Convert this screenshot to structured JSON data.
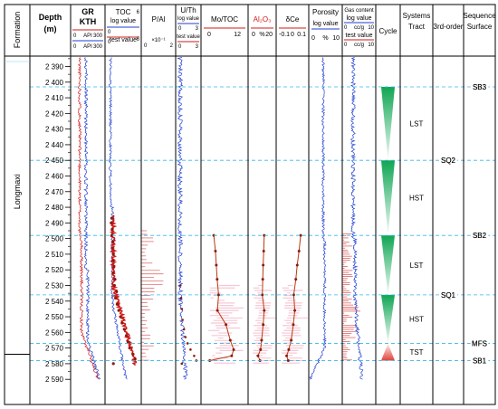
{
  "chart_data": {
    "type": "well-log",
    "depth": {
      "min": 2380,
      "max": 2590,
      "ticks": [
        2390,
        2400,
        2410,
        2420,
        2430,
        2440,
        2450,
        2460,
        2470,
        2480,
        2490,
        2500,
        2510,
        2520,
        2530,
        2540,
        2550,
        2560,
        2570,
        2580,
        2590
      ]
    },
    "formation": "Longmaxi",
    "columns": [
      {
        "key": "formation",
        "header": "Formation"
      },
      {
        "key": "depth",
        "header": "Depth",
        "sub": "(m)"
      },
      {
        "key": "gr",
        "header": "GR",
        "header2": "KTH",
        "scale1": [
          "0",
          "API",
          "300"
        ],
        "scale2": [
          "0",
          "API",
          "300"
        ]
      },
      {
        "key": "toc",
        "header": "TOC",
        "header2": "log value",
        "header3": "test value",
        "scale1": [
          "0",
          "6"
        ],
        "scale2": [
          "0",
          "6"
        ]
      },
      {
        "key": "pal",
        "header": "P/Al",
        "sub": "×10⁻¹",
        "scale1": [
          "0",
          "2"
        ]
      },
      {
        "key": "uth",
        "header": "U/Th",
        "header2": "log value",
        "header3": "test value",
        "scale1": [
          "0",
          "3"
        ],
        "scale2": [
          "0",
          "3"
        ]
      },
      {
        "key": "moc",
        "header": "Mo/TOC",
        "scale1": [
          "0",
          "12"
        ]
      },
      {
        "key": "al",
        "header": "Al₂O₃",
        "scale1": [
          "0",
          "%",
          "20"
        ]
      },
      {
        "key": "ce",
        "header": "δCe",
        "scale1": [
          "-0.1",
          "0",
          "0.1"
        ]
      },
      {
        "key": "por",
        "header": "Porosity",
        "header2": "log value",
        "scale1": [
          "0",
          "%",
          "10"
        ]
      },
      {
        "key": "gas",
        "header": "Gas content",
        "header2": "log value",
        "header3": "test value",
        "scale1": [
          "0",
          "cc/g",
          "10"
        ],
        "scale2": [
          "0",
          "cc/g",
          "10"
        ]
      },
      {
        "key": "cycle",
        "header": "Cycle"
      },
      {
        "key": "tract",
        "header": "Systems",
        "sub": "Tract"
      },
      {
        "key": "third",
        "header": "3rd-order"
      },
      {
        "key": "seq",
        "header": "Sequence",
        "sub": "Surface"
      }
    ],
    "surfaces": [
      {
        "name": "SB3",
        "depth": 2403,
        "label_col": "seq"
      },
      {
        "name": "SQ2",
        "depth": 2450,
        "label_col": "third"
      },
      {
        "name": "SB2",
        "depth": 2498,
        "label_col": "seq"
      },
      {
        "name": "SQ1",
        "depth": 2536,
        "label_col": "third"
      },
      {
        "name": "MFS",
        "depth": 2567,
        "label_col": "seq"
      },
      {
        "name": "SB1",
        "depth": 2578,
        "label_col": "seq"
      }
    ],
    "systems_tracts": [
      {
        "name": "LST",
        "top": 2403,
        "bottom": 2450
      },
      {
        "name": "HST",
        "top": 2450,
        "bottom": 2498
      },
      {
        "name": "LST",
        "top": 2498,
        "bottom": 2536
      },
      {
        "name": "HST",
        "top": 2536,
        "bottom": 2567
      },
      {
        "name": "TST",
        "top": 2567,
        "bottom": 2578
      }
    ],
    "cycles": [
      {
        "type": "regressive",
        "top": 2403,
        "bottom": 2450,
        "color": "#0fa653"
      },
      {
        "type": "regressive",
        "top": 2450,
        "bottom": 2498,
        "color": "#0fa653"
      },
      {
        "type": "regressive",
        "top": 2498,
        "bottom": 2536,
        "color": "#0fa653"
      },
      {
        "type": "regressive",
        "top": 2536,
        "bottom": 2567,
        "color": "#0fa653"
      },
      {
        "type": "transgressive",
        "top": 2567,
        "bottom": 2578,
        "color": "#e0423a"
      }
    ],
    "samples": {
      "depths": [
        2498,
        2508,
        2517,
        2526,
        2536,
        2546,
        2555,
        2565,
        2571,
        2575,
        2578
      ],
      "moc": [
        3.2,
        3.8,
        4.1,
        4.4,
        4.9,
        4.5,
        7.5,
        9.0,
        10.2,
        9.5,
        1.8
      ],
      "al": [
        12.0,
        11.5,
        11.0,
        10.6,
        10.2,
        12.0,
        11.0,
        9.5,
        8.5,
        6.0,
        8.0
      ],
      "ce": [
        0.078,
        0.062,
        0.045,
        0.032,
        0.012,
        0.022,
        0.008,
        -0.012,
        -0.035,
        -0.055,
        -0.04
      ]
    },
    "toc_test": {
      "depths": [
        2487,
        2490,
        2494,
        2498,
        2502,
        2506,
        2510,
        2514,
        2518,
        2522,
        2526,
        2530,
        2534,
        2538,
        2542,
        2546,
        2550,
        2554,
        2558,
        2562,
        2566,
        2570,
        2574,
        2577,
        2580
      ],
      "values": [
        0.9,
        0.8,
        1.0,
        0.9,
        1.1,
        1.0,
        1.2,
        1.1,
        1.3,
        1.2,
        1.5,
        1.4,
        1.8,
        1.6,
        1.9,
        2.2,
        2.5,
        2.8,
        3.2,
        3.6,
        3.9,
        4.2,
        4.8,
        5.2,
        1.2
      ]
    },
    "uth_test": {
      "depths": [
        2530,
        2538,
        2545,
        2552,
        2558,
        2563,
        2567,
        2571,
        2575,
        2578,
        2580
      ],
      "values": [
        0.4,
        0.5,
        0.6,
        0.7,
        0.9,
        1.1,
        1.4,
        1.8,
        2.3,
        2.6,
        0.6
      ]
    },
    "colors": {
      "blue": "#1f3fd1",
      "red": "#d21818",
      "sample_line": "#b83a14",
      "sample_dot": "#8a1c0c",
      "surface": "#37b8e8",
      "cycle_green": "#0fa653",
      "cycle_red": "#e0423a"
    }
  }
}
